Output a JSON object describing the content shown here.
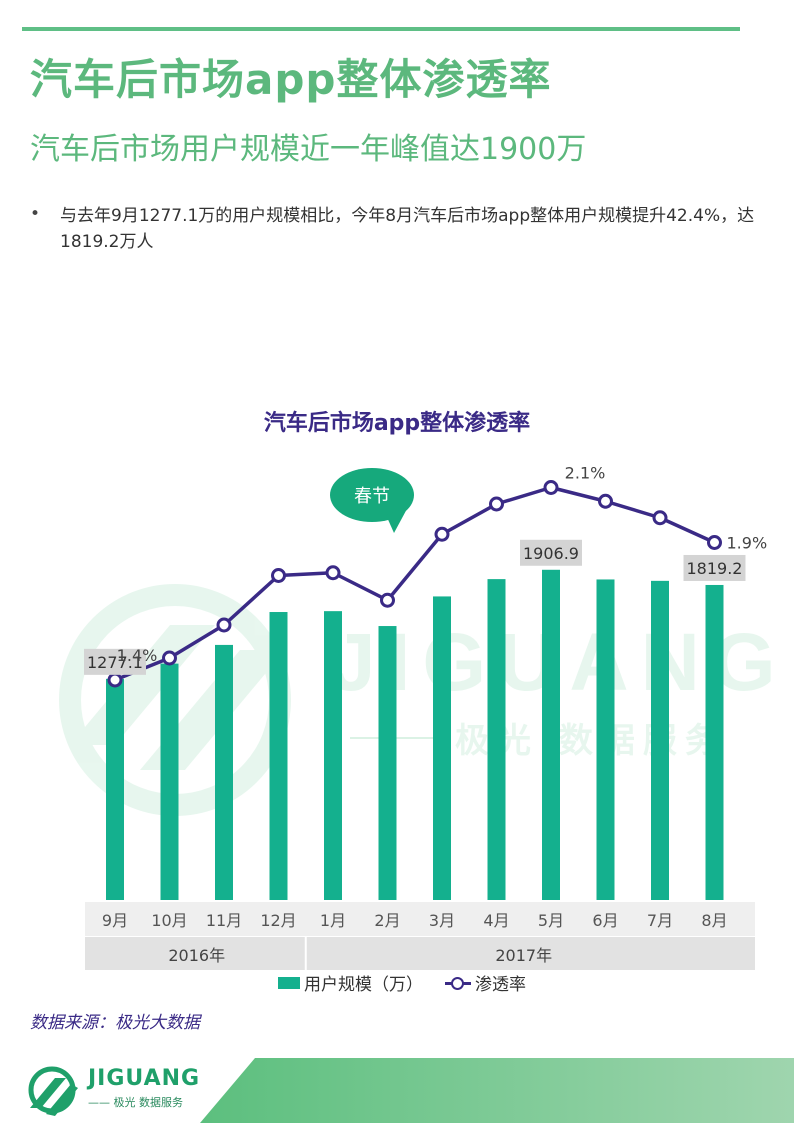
{
  "header": {
    "title": "汽车后市场app整体渗透率",
    "subtitle": "汽车后市场用户规模近一年峰值达1900万"
  },
  "bullet": {
    "marker": "•",
    "text": "与去年9月1277.1万的用户规模相比，今年8月汽车后市场app整体用户规模提升42.4%，达1819.2万人"
  },
  "chart_data": {
    "type": "bar",
    "title": "汽车后市场app整体渗透率",
    "categories": [
      "9月",
      "10月",
      "11月",
      "12月",
      "1月",
      "2月",
      "3月",
      "4月",
      "5月",
      "6月",
      "7月",
      "8月"
    ],
    "year_groups": [
      {
        "label": "2016年",
        "count": 4
      },
      {
        "label": "2017年",
        "count": 8
      }
    ],
    "series": [
      {
        "name": "用户规模（万）",
        "type": "bar",
        "color": "#14b08e",
        "values": [
          1277.1,
          1365,
          1473,
          1663,
          1668,
          1582,
          1753,
          1853,
          1906.9,
          1851,
          1843,
          1819.2
        ]
      },
      {
        "name": "渗透率",
        "type": "line",
        "color": "#3a2a86",
        "values": [
          1.4,
          1.48,
          1.6,
          1.78,
          1.79,
          1.69,
          1.93,
          2.04,
          2.1,
          2.05,
          1.99,
          1.9
        ]
      }
    ],
    "bar_ylim": [
      0,
      2050
    ],
    "line_ylim": [
      0.6,
      2.2
    ],
    "data_labels": [
      {
        "series": 0,
        "index": 0,
        "text": "1277.1"
      },
      {
        "series": 0,
        "index": 8,
        "text": "1906.9"
      },
      {
        "series": 0,
        "index": 11,
        "text": "1819.2"
      },
      {
        "series": 1,
        "index": 0,
        "text": "1.4%"
      },
      {
        "series": 1,
        "index": 8,
        "text": "2.1%"
      },
      {
        "series": 1,
        "index": 11,
        "text": "1.9%"
      }
    ],
    "annotation": {
      "text": "春节",
      "index": 5
    },
    "legend_position": "bottom",
    "grid": false
  },
  "watermark": {
    "brand": "JIGUANG",
    "tagline": "极光 数据服务"
  },
  "source_text": "数据来源：极光大数据",
  "footer": {
    "logo_text": "JIGUANG",
    "logo_sub": "—— 极光 数据服务"
  },
  "colors": {
    "accent_green": "#5cb87d",
    "bar_green": "#14b08e",
    "line_purple": "#3a2a86",
    "bubble_green": "#16a97c"
  }
}
